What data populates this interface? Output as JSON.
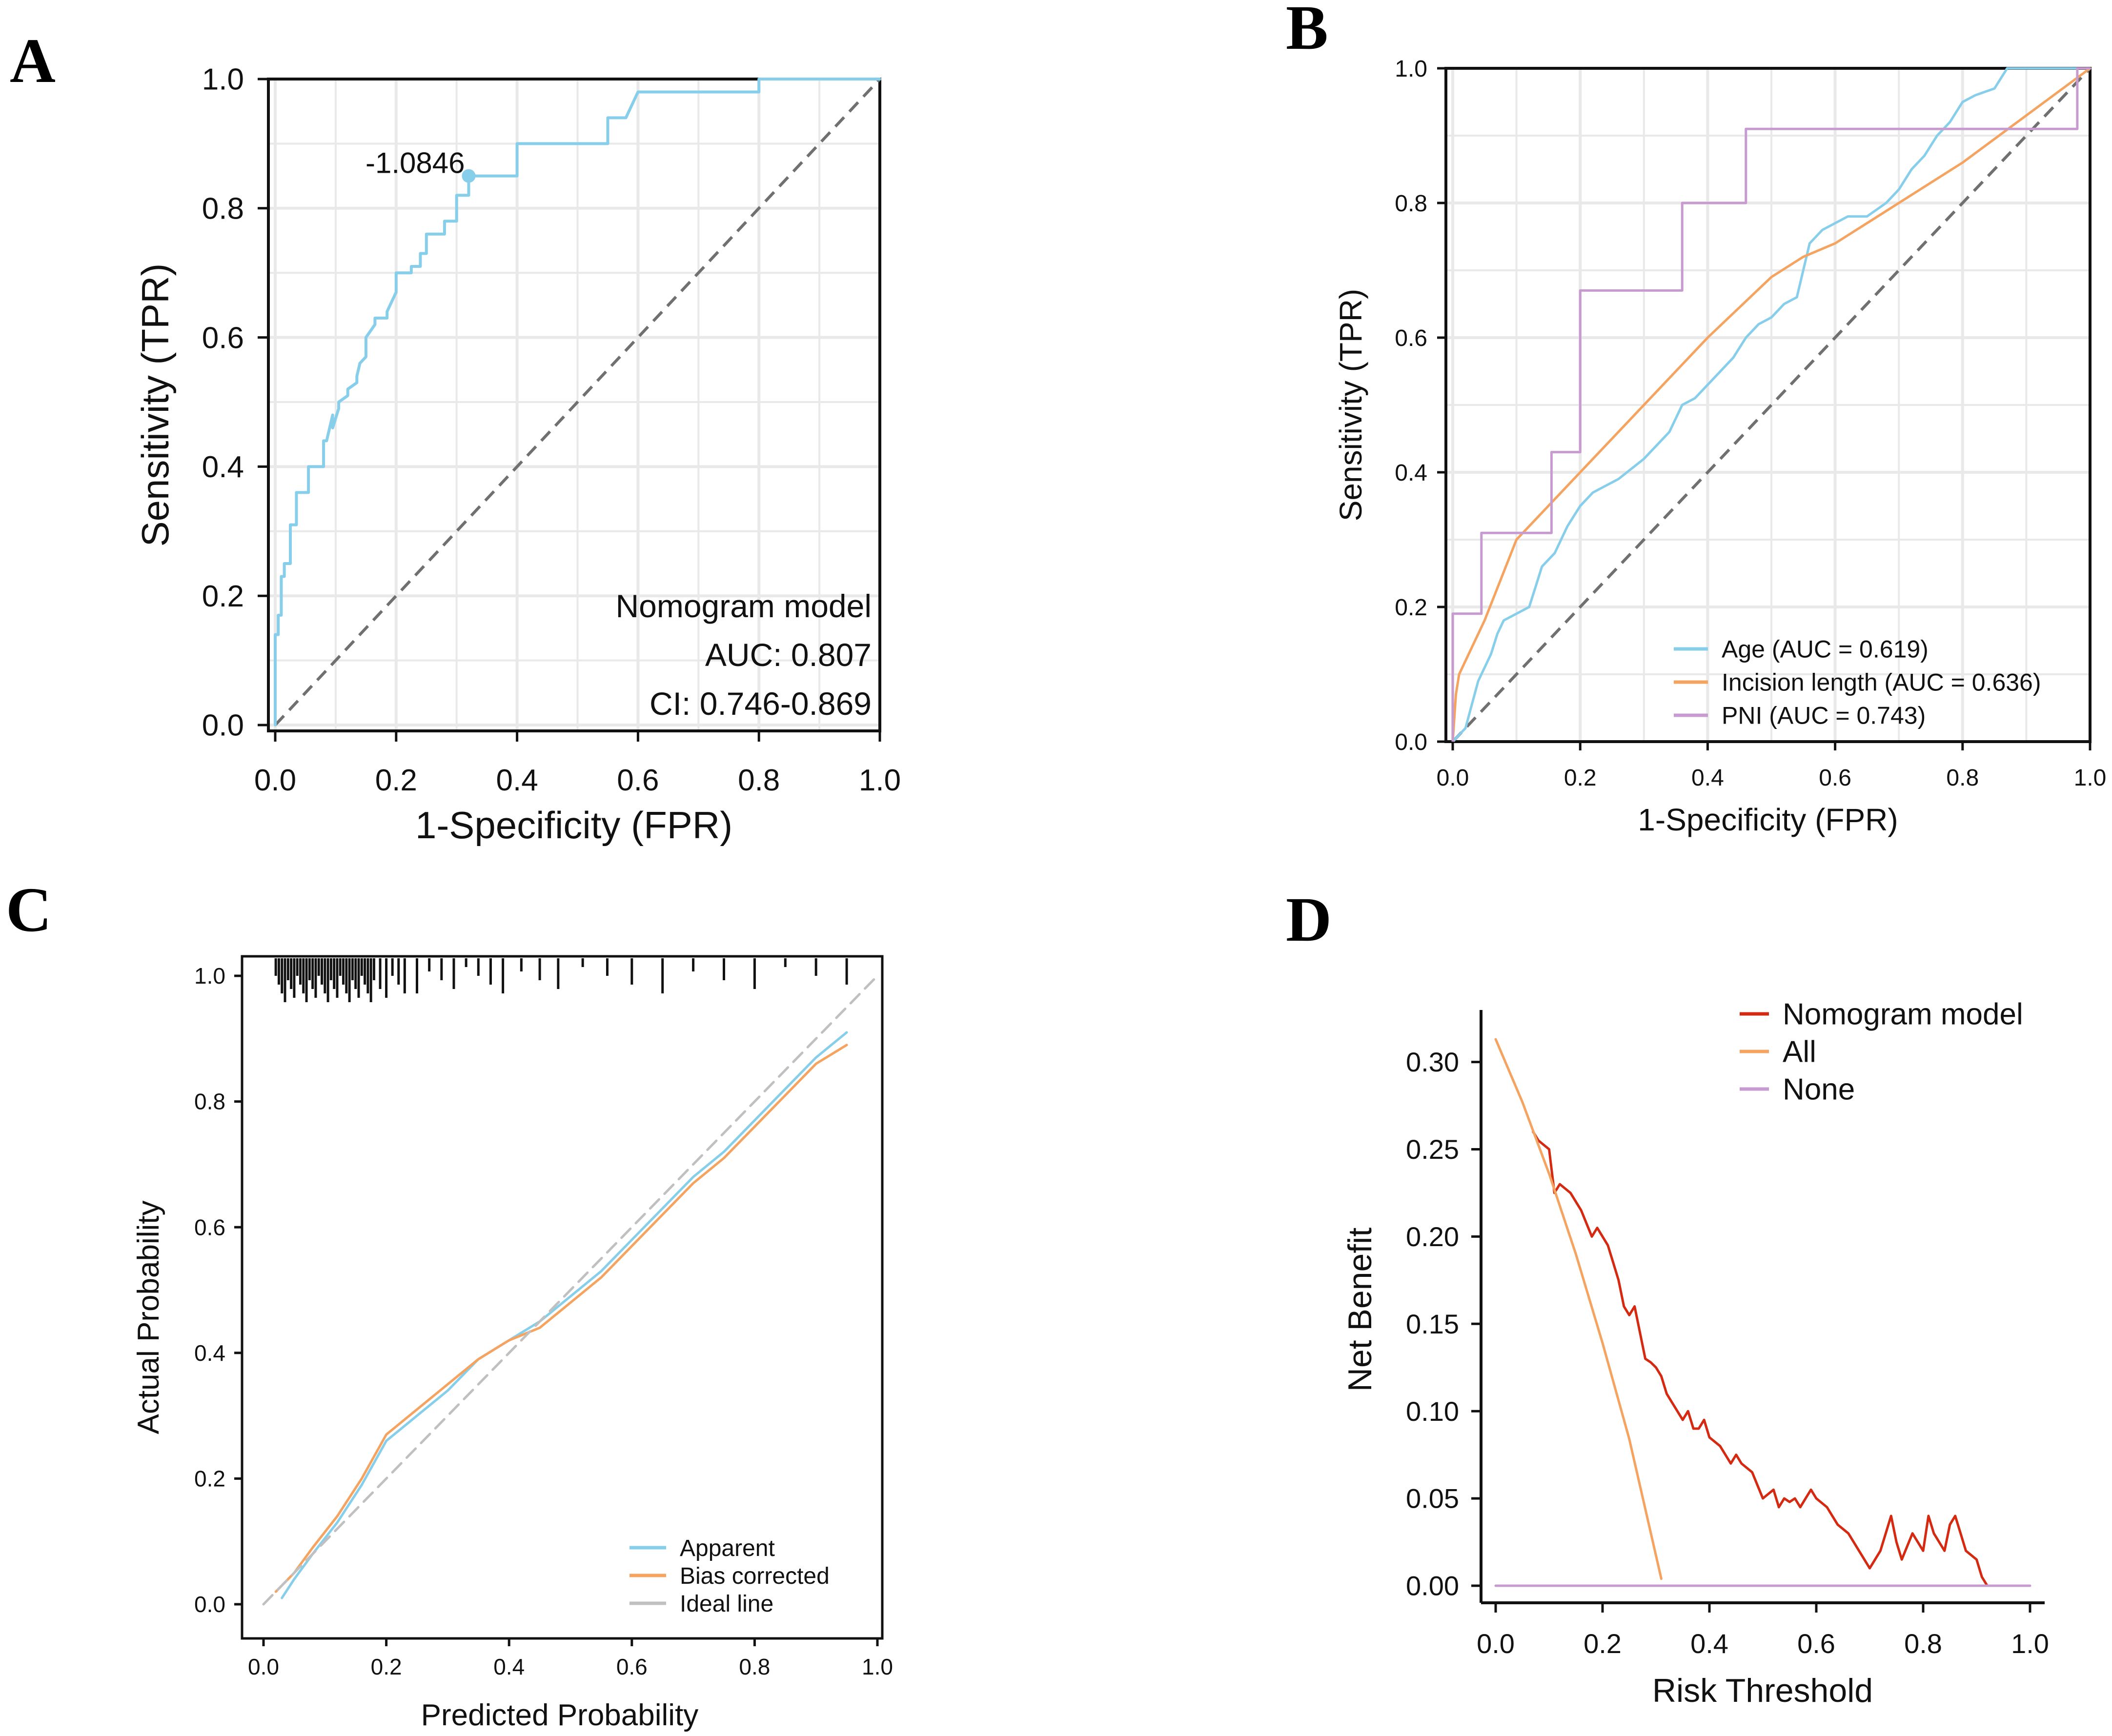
{
  "colors": {
    "light_blue": "#87ceeb",
    "orange": "#f4a460",
    "purple": "#c89bd0",
    "red": "#d42a12",
    "gray_dash": "#707070",
    "light_gray_dash": "#c0c0c0",
    "grid": "#e9e9e9"
  },
  "chart_data": [
    {
      "panel": "A",
      "type": "line",
      "title": "",
      "xlabel": "1-Specificity (FPR)",
      "ylabel": "Sensitivity (TPR)",
      "xlim": [
        0,
        1
      ],
      "ylim": [
        0,
        1
      ],
      "xticks": [
        "0.0",
        "0.2",
        "0.4",
        "0.6",
        "0.8",
        "1.0"
      ],
      "yticks": [
        "0.0",
        "0.2",
        "0.4",
        "0.6",
        "0.8",
        "1.0"
      ],
      "grid": true,
      "diagonal": true,
      "series": [
        {
          "name": "Nomogram model",
          "color": "#87ceeb",
          "x": [
            0,
            0,
            0.005,
            0.005,
            0.01,
            0.01,
            0.015,
            0.015,
            0.025,
            0.025,
            0.035,
            0.035,
            0.055,
            0.055,
            0.08,
            0.08,
            0.085,
            0.095,
            0.095,
            0.105,
            0.105,
            0.12,
            0.12,
            0.135,
            0.135,
            0.14,
            0.15,
            0.15,
            0.165,
            0.165,
            0.185,
            0.185,
            0.2,
            0.2,
            0.225,
            0.225,
            0.24,
            0.24,
            0.25,
            0.25,
            0.28,
            0.28,
            0.3,
            0.3,
            0.32,
            0.32,
            0.4,
            0.4,
            0.55,
            0.55,
            0.58,
            0.6,
            0.8,
            0.8,
            1
          ],
          "y": [
            0,
            0.14,
            0.14,
            0.17,
            0.17,
            0.23,
            0.23,
            0.25,
            0.25,
            0.31,
            0.31,
            0.36,
            0.36,
            0.4,
            0.4,
            0.44,
            0.44,
            0.48,
            0.46,
            0.49,
            0.5,
            0.51,
            0.52,
            0.53,
            0.54,
            0.56,
            0.57,
            0.6,
            0.62,
            0.63,
            0.63,
            0.64,
            0.67,
            0.7,
            0.7,
            0.71,
            0.71,
            0.73,
            0.73,
            0.76,
            0.76,
            0.78,
            0.78,
            0.82,
            0.82,
            0.85,
            0.85,
            0.9,
            0.9,
            0.94,
            0.94,
            0.98,
            0.98,
            1,
            1
          ]
        }
      ],
      "cutoff_point": {
        "x": 0.32,
        "y": 0.85,
        "label": "-1.0846"
      },
      "annotations": [
        "Nomogram model",
        "AUC:  0.807",
        "CI:  0.746-0.869"
      ]
    },
    {
      "panel": "B",
      "type": "line",
      "title": "",
      "xlabel": "1-Specificity (FPR)",
      "ylabel": "Sensitivity (TPR)",
      "xlim": [
        0,
        1
      ],
      "ylim": [
        0,
        1
      ],
      "xticks": [
        "0.0",
        "0.2",
        "0.4",
        "0.6",
        "0.8",
        "1.0"
      ],
      "yticks": [
        "0.0",
        "0.2",
        "0.4",
        "0.6",
        "0.8",
        "1.0"
      ],
      "grid": true,
      "diagonal": true,
      "legend_position": "bottom-right",
      "series": [
        {
          "name": "Age (AUC = 0.619)",
          "color": "#87ceeb",
          "x": [
            0,
            0.02,
            0.04,
            0.06,
            0.07,
            0.08,
            0.1,
            0.12,
            0.13,
            0.14,
            0.15,
            0.16,
            0.18,
            0.2,
            0.22,
            0.26,
            0.3,
            0.34,
            0.36,
            0.38,
            0.4,
            0.42,
            0.44,
            0.46,
            0.48,
            0.5,
            0.52,
            0.54,
            0.56,
            0.58,
            0.6,
            0.62,
            0.65,
            0.68,
            0.7,
            0.72,
            0.74,
            0.76,
            0.78,
            0.8,
            0.82,
            0.85,
            0.87,
            0.9,
            0.95,
            1
          ],
          "y": [
            0,
            0.02,
            0.09,
            0.13,
            0.16,
            0.18,
            0.19,
            0.2,
            0.23,
            0.26,
            0.27,
            0.28,
            0.32,
            0.35,
            0.37,
            0.39,
            0.42,
            0.46,
            0.5,
            0.51,
            0.53,
            0.55,
            0.57,
            0.6,
            0.62,
            0.63,
            0.65,
            0.66,
            0.74,
            0.76,
            0.77,
            0.78,
            0.78,
            0.8,
            0.82,
            0.85,
            0.87,
            0.9,
            0.92,
            0.95,
            0.96,
            0.97,
            1,
            1,
            1,
            1
          ]
        },
        {
          "name": "Incision length (AUC = 0.636)",
          "color": "#f4a460",
          "x": [
            0,
            0.005,
            0.01,
            0.05,
            0.1,
            0.2,
            0.3,
            0.4,
            0.5,
            0.55,
            0.6,
            0.7,
            0.8,
            0.9,
            1
          ],
          "y": [
            0,
            0.07,
            0.1,
            0.18,
            0.3,
            0.4,
            0.5,
            0.6,
            0.69,
            0.72,
            0.74,
            0.8,
            0.86,
            0.93,
            1
          ]
        },
        {
          "name": "PNI (AUC = 0.743)",
          "color": "#c89bd0",
          "x": [
            0,
            0,
            0.045,
            0.045,
            0.155,
            0.155,
            0.2,
            0.2,
            0.36,
            0.36,
            0.46,
            0.46,
            0.98,
            0.98,
            1
          ],
          "y": [
            0,
            0.19,
            0.19,
            0.31,
            0.31,
            0.43,
            0.43,
            0.67,
            0.67,
            0.8,
            0.8,
            0.91,
            0.91,
            1,
            1
          ]
        }
      ]
    },
    {
      "panel": "C",
      "type": "line",
      "title": "",
      "xlabel": "Predicted Probability",
      "ylabel": "Actual Probability",
      "xlim": [
        0,
        1
      ],
      "ylim": [
        0,
        1
      ],
      "xticks": [
        "0.0",
        "0.2",
        "0.4",
        "0.6",
        "0.8",
        "1.0"
      ],
      "yticks": [
        "0.0",
        "0.2",
        "0.4",
        "0.6",
        "0.8",
        "1.0"
      ],
      "grid": false,
      "legend_position": "bottom-right",
      "series": [
        {
          "name": "Apparent",
          "color": "#87ceeb",
          "x": [
            0.03,
            0.05,
            0.08,
            0.12,
            0.16,
            0.2,
            0.25,
            0.3,
            0.35,
            0.4,
            0.45,
            0.5,
            0.55,
            0.6,
            0.65,
            0.7,
            0.75,
            0.8,
            0.85,
            0.9,
            0.95
          ],
          "y": [
            0.01,
            0.04,
            0.08,
            0.13,
            0.19,
            0.26,
            0.3,
            0.34,
            0.39,
            0.42,
            0.45,
            0.49,
            0.53,
            0.58,
            0.63,
            0.68,
            0.72,
            0.77,
            0.82,
            0.87,
            0.91
          ]
        },
        {
          "name": "Bias corrected",
          "color": "#f4a460",
          "x": [
            0.02,
            0.05,
            0.08,
            0.12,
            0.16,
            0.2,
            0.25,
            0.3,
            0.35,
            0.4,
            0.45,
            0.5,
            0.55,
            0.6,
            0.65,
            0.7,
            0.75,
            0.8,
            0.85,
            0.9,
            0.95
          ],
          "y": [
            0.02,
            0.05,
            0.09,
            0.14,
            0.2,
            0.27,
            0.31,
            0.35,
            0.39,
            0.42,
            0.44,
            0.48,
            0.52,
            0.57,
            0.62,
            0.67,
            0.71,
            0.76,
            0.81,
            0.86,
            0.89
          ]
        },
        {
          "name": "Ideal line",
          "color": "#c0c0c0",
          "x": [
            0,
            1
          ],
          "y": [
            0,
            1
          ]
        }
      ],
      "rug_x": [
        0.02,
        0.025,
        0.03,
        0.035,
        0.04,
        0.045,
        0.05,
        0.055,
        0.06,
        0.065,
        0.07,
        0.075,
        0.08,
        0.085,
        0.09,
        0.095,
        0.1,
        0.105,
        0.11,
        0.115,
        0.12,
        0.125,
        0.13,
        0.135,
        0.14,
        0.145,
        0.15,
        0.155,
        0.16,
        0.165,
        0.17,
        0.175,
        0.18,
        0.19,
        0.2,
        0.21,
        0.22,
        0.23,
        0.25,
        0.27,
        0.29,
        0.31,
        0.33,
        0.35,
        0.37,
        0.39,
        0.42,
        0.45,
        0.48,
        0.52,
        0.56,
        0.6,
        0.65,
        0.7,
        0.75,
        0.8,
        0.85,
        0.9,
        0.95
      ]
    },
    {
      "panel": "D",
      "type": "line",
      "title": "",
      "xlabel": "Risk Threshold",
      "ylabel": "Net Benefit",
      "xlim": [
        0,
        1
      ],
      "ylim": [
        0,
        0.32
      ],
      "xticks": [
        "0.0",
        "0.2",
        "0.4",
        "0.6",
        "0.8",
        "1.0"
      ],
      "yticks": [
        "0.00",
        "0.05",
        "0.10",
        "0.15",
        "0.20",
        "0.25",
        "0.30"
      ],
      "grid": false,
      "legend_position": "top-right",
      "series": [
        {
          "name": "Nomogram model",
          "color": "#d42a12",
          "x": [
            0.07,
            0.08,
            0.1,
            0.11,
            0.12,
            0.14,
            0.16,
            0.18,
            0.19,
            0.2,
            0.21,
            0.22,
            0.23,
            0.24,
            0.25,
            0.26,
            0.27,
            0.28,
            0.29,
            0.3,
            0.31,
            0.32,
            0.33,
            0.34,
            0.35,
            0.36,
            0.37,
            0.38,
            0.39,
            0.4,
            0.42,
            0.44,
            0.45,
            0.46,
            0.48,
            0.5,
            0.52,
            0.53,
            0.54,
            0.55,
            0.56,
            0.57,
            0.58,
            0.59,
            0.6,
            0.62,
            0.64,
            0.66,
            0.68,
            0.7,
            0.72,
            0.74,
            0.75,
            0.76,
            0.78,
            0.8,
            0.81,
            0.82,
            0.83,
            0.84,
            0.85,
            0.86,
            0.87,
            0.88,
            0.9,
            0.91,
            0.92
          ],
          "y": [
            0.26,
            0.255,
            0.25,
            0.225,
            0.23,
            0.225,
            0.215,
            0.2,
            0.205,
            0.2,
            0.195,
            0.185,
            0.175,
            0.16,
            0.155,
            0.16,
            0.145,
            0.13,
            0.128,
            0.125,
            0.12,
            0.11,
            0.105,
            0.1,
            0.095,
            0.1,
            0.09,
            0.09,
            0.095,
            0.085,
            0.08,
            0.07,
            0.075,
            0.07,
            0.065,
            0.05,
            0.055,
            0.045,
            0.05,
            0.048,
            0.05,
            0.045,
            0.05,
            0.055,
            0.05,
            0.045,
            0.035,
            0.03,
            0.02,
            0.01,
            0.02,
            0.04,
            0.025,
            0.015,
            0.03,
            0.02,
            0.04,
            0.03,
            0.025,
            0.02,
            0.035,
            0.04,
            0.03,
            0.02,
            0.015,
            0.005,
            0.0
          ]
        },
        {
          "name": "All",
          "color": "#f4a460",
          "x": [
            0,
            0.05,
            0.1,
            0.15,
            0.2,
            0.25,
            0.31
          ],
          "y": [
            0.313,
            0.277,
            0.236,
            0.19,
            0.139,
            0.084,
            0.004
          ]
        },
        {
          "name": "None",
          "color": "#c89bd0",
          "x": [
            0,
            1
          ],
          "y": [
            0,
            0
          ]
        }
      ]
    }
  ]
}
